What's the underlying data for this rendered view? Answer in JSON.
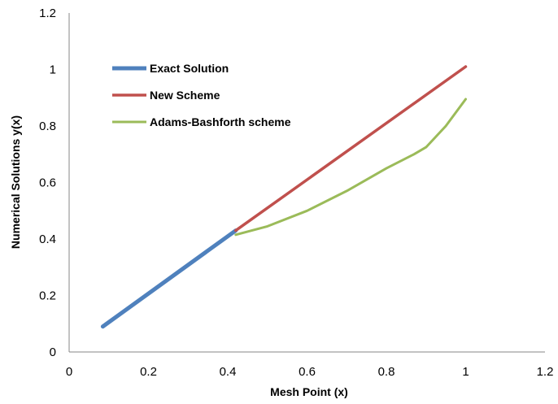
{
  "chart_data": {
    "type": "line",
    "title": "",
    "xlabel": "Mesh Point (x)",
    "ylabel": "Numerical Solutions y(x)",
    "xlim": [
      0,
      1.2
    ],
    "ylim": [
      0,
      1.2
    ],
    "x_ticks": [
      "0",
      "0.2",
      "0.4",
      "0.6",
      "0.8",
      "1",
      "1.2"
    ],
    "y_ticks": [
      "0",
      "0.2",
      "0.4",
      "0.6",
      "0.8",
      "1",
      "1.2"
    ],
    "grid": false,
    "legend_position": "top-left",
    "series": [
      {
        "name": "Exact Solution",
        "color": "#4f81bd",
        "x": [
          0.085,
          0.42
        ],
        "y": [
          0.09,
          0.43
        ]
      },
      {
        "name": "New Scheme",
        "color": "#c0504d",
        "x": [
          0.42,
          1.0
        ],
        "y": [
          0.43,
          1.01
        ]
      },
      {
        "name": "Adams-Bashforth scheme",
        "color": "#9bbb59",
        "x": [
          0.42,
          0.5,
          0.6,
          0.7,
          0.8,
          0.87,
          0.9,
          0.95,
          1.0
        ],
        "y": [
          0.415,
          0.445,
          0.5,
          0.57,
          0.65,
          0.7,
          0.725,
          0.8,
          0.895
        ]
      }
    ]
  }
}
